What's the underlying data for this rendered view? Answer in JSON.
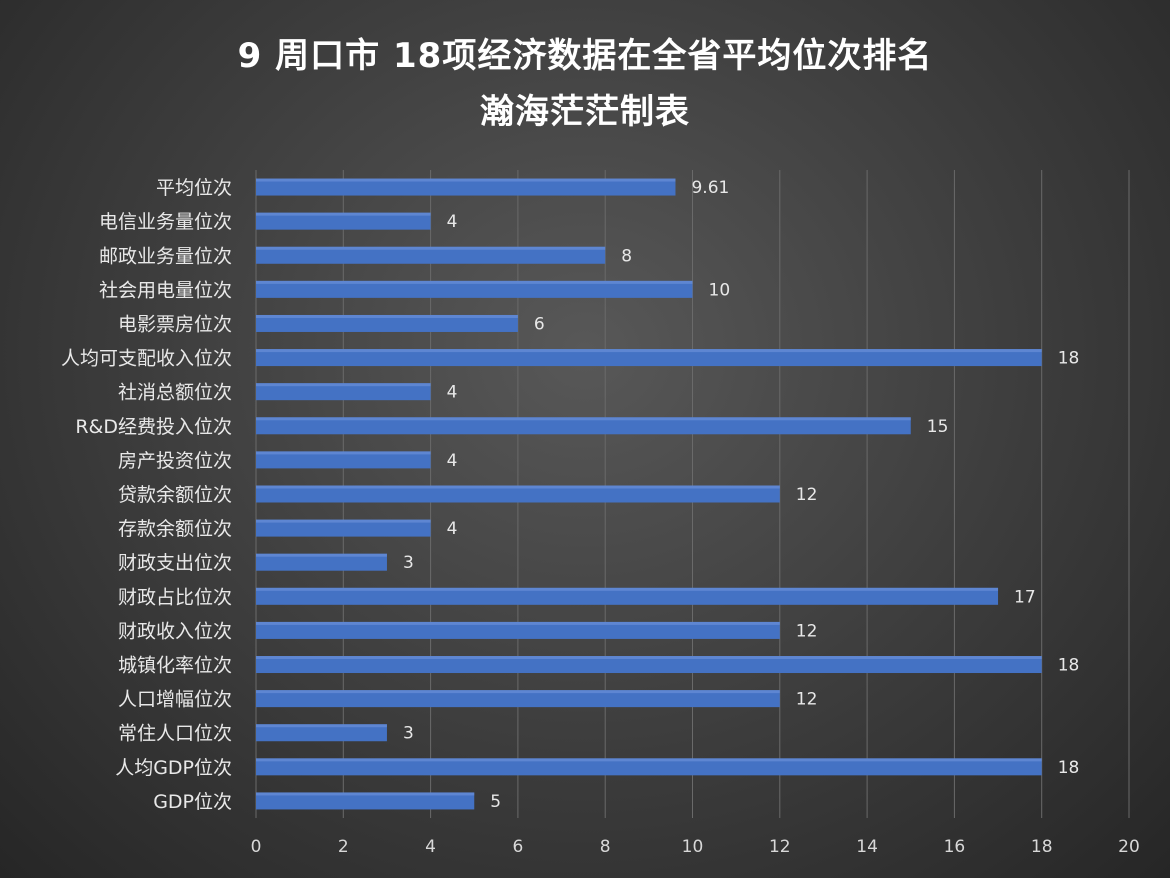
{
  "title_line1": "9 周口市 18项经济数据在全省平均位次排名",
  "title_line2": "瀚海茫茫制表",
  "colors": {
    "bar": "#4472c4",
    "bar_highlight": "#6f95dc",
    "grid": "#6a6a6a",
    "text": "#e8e8e8"
  },
  "chart_data": {
    "type": "bar",
    "orientation": "horizontal",
    "title": "9 周口市 18项经济数据在全省平均位次排名",
    "subtitle": "瀚海茫茫制表",
    "categories": [
      "平均位次",
      "电信业务量位次",
      "邮政业务量位次",
      "社会用电量位次",
      "电影票房位次",
      "人均可支配收入位次",
      "社消总额位次",
      "R&D经费投入位次",
      "房产投资位次",
      "贷款余额位次",
      "存款余额位次",
      "财政支出位次",
      "财政占比位次",
      "财政收入位次",
      "城镇化率位次",
      "人口增幅位次",
      "常住人口位次",
      "人均GDP位次",
      "GDP位次"
    ],
    "values": [
      9.61,
      4,
      8,
      10,
      6,
      18,
      4,
      15,
      4,
      12,
      4,
      3,
      17,
      12,
      18,
      12,
      3,
      18,
      5
    ],
    "value_labels": [
      "9.61",
      "4",
      "8",
      "10",
      "6",
      "18",
      "4",
      "15",
      "4",
      "12",
      "4",
      "3",
      "17",
      "12",
      "18",
      "12",
      "3",
      "18",
      "5"
    ],
    "xlim": [
      0,
      20
    ],
    "xticks": [
      "0",
      "2",
      "4",
      "6",
      "8",
      "10",
      "12",
      "14",
      "16",
      "18",
      "20"
    ],
    "grid": true,
    "legend": "none"
  }
}
